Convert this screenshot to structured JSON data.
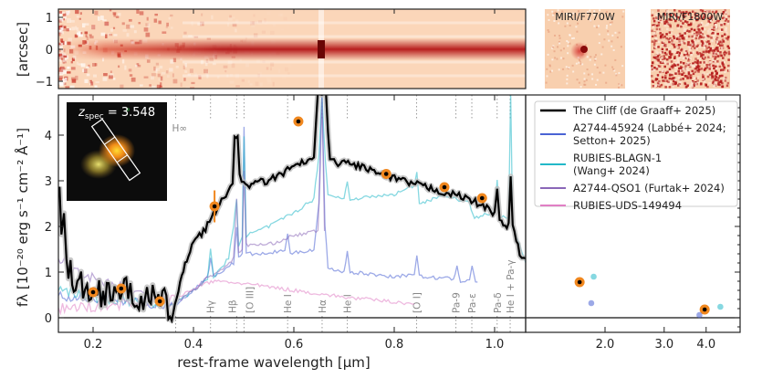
{
  "chart_data": {
    "type": "line",
    "colors": {
      "cliff": "#000000",
      "cliff_error": "#bbbbbb",
      "a2744_45924": "#4a63d4",
      "rubies_blagn1": "#22b8c8",
      "a2744_qso1": "#8a67b8",
      "rubies_uds": "#e07fc4",
      "photometry": "#f0871e"
    },
    "spectrum_panel": {
      "ylabel_parts": [
        "[arcsec]"
      ],
      "yticks": [
        "1",
        "0",
        "−1"
      ],
      "y_values": [
        1,
        0,
        -1
      ],
      "colormap": "reds"
    },
    "cutouts": [
      {
        "label": "MIRI/F770W"
      },
      {
        "label": "MIRI/F1800W"
      }
    ],
    "inset": {
      "label_z": "z",
      "label_sub": "spec",
      "label_value": " = 3.548"
    },
    "main_panel": {
      "xlabel": "rest-frame wavelength [μm]",
      "ylabel": "fλ [10⁻²⁰ erg s⁻¹ cm⁻² Å⁻¹]",
      "xlim": [
        0.131,
        1.062
      ],
      "ylim": [
        -0.32,
        4.83
      ],
      "xscale": "linear",
      "xticks": [
        0.2,
        0.4,
        0.6,
        0.8,
        1.0
      ],
      "xtick_labels": [
        "0.2",
        "0.4",
        "0.6",
        "0.8",
        "1.0"
      ],
      "yticks": [
        0,
        1,
        2,
        3,
        4
      ],
      "ytick_labels": [
        "0",
        "1",
        "2",
        "3",
        "4"
      ]
    },
    "right_panel": {
      "xlim": [
        1.16,
        5.05
      ],
      "xscale": "log",
      "xticks": [
        2.0,
        3.0,
        4.0
      ],
      "xtick_labels": [
        "2.0",
        "3.0",
        "4.0"
      ]
    },
    "legend": {
      "placement": "upper-right",
      "entries": [
        {
          "key": "cliff",
          "label": [
            "The Cliff (de Graaff+ 2025)"
          ]
        },
        {
          "key": "a2744_45924",
          "label": [
            "A2744-45924 (Labbé+ 2024;",
            " Setton+ 2025)"
          ]
        },
        {
          "key": "rubies_blagn1",
          "label": [
            "RUBIES-BLAGN-1",
            " (Wang+ 2024)"
          ]
        },
        {
          "key": "a2744_qso1",
          "label": [
            "A2744-QSO1 (Furtak+ 2024)"
          ]
        },
        {
          "key": "rubies_uds",
          "label": [
            "RUBIES-UDS-149494"
          ]
        }
      ]
    },
    "emission_lines": [
      {
        "label": "H∞",
        "wavelength": 0.3646,
        "pos": "top"
      },
      {
        "label": "Hγ",
        "wavelength": 0.434
      },
      {
        "label": "Hβ",
        "wavelength": 0.4861
      },
      {
        "label": "[O III]",
        "wavelength": 0.5007
      },
      {
        "label": "He I",
        "wavelength": 0.5876
      },
      {
        "label": "Hα",
        "wavelength": 0.6563
      },
      {
        "label": "He I",
        "wavelength": 0.7065
      },
      {
        "label": "[O I]",
        "wavelength": 0.8446
      },
      {
        "label": "Pa-9",
        "wavelength": 0.9229
      },
      {
        "label": "Pa-ε",
        "wavelength": 0.9546
      },
      {
        "label": "Pa-δ",
        "wavelength": 1.005
      },
      {
        "label": "He I + Pa-γ",
        "wavelength": 1.031
      }
    ],
    "series": [
      {
        "key": "a2744_45924",
        "name": "A2744-45924",
        "points": [
          [
            0.131,
            0.45
          ],
          [
            0.2,
            0.45
          ],
          [
            0.3,
            0.35
          ],
          [
            0.36,
            0.25
          ],
          [
            0.4,
            0.6
          ],
          [
            0.428,
            0.9
          ],
          [
            0.434,
            1.3
          ],
          [
            0.44,
            0.9
          ],
          [
            0.48,
            1.2
          ],
          [
            0.486,
            2.0
          ],
          [
            0.49,
            1.3
          ],
          [
            0.497,
            1.4
          ],
          [
            0.5007,
            4.2
          ],
          [
            0.505,
            1.4
          ],
          [
            0.55,
            1.4
          ],
          [
            0.582,
            1.5
          ],
          [
            0.5876,
            1.8
          ],
          [
            0.593,
            1.4
          ],
          [
            0.64,
            1.5
          ],
          [
            0.65,
            2.5
          ],
          [
            0.656,
            4.9
          ],
          [
            0.662,
            2.0
          ],
          [
            0.668,
            1.1
          ],
          [
            0.7,
            1.0
          ],
          [
            0.7065,
            1.45
          ],
          [
            0.712,
            1.0
          ],
          [
            0.8,
            0.9
          ],
          [
            0.84,
            0.95
          ],
          [
            0.845,
            1.4
          ],
          [
            0.85,
            0.9
          ],
          [
            0.918,
            0.85
          ],
          [
            0.925,
            1.1
          ],
          [
            0.932,
            0.8
          ],
          [
            0.95,
            0.85
          ],
          [
            0.955,
            1.15
          ],
          [
            0.962,
            0.8
          ],
          [
            0.966,
            0.78
          ]
        ]
      },
      {
        "key": "rubies_blagn1",
        "name": "RUBIES-BLAGN-1",
        "points": [
          [
            0.131,
            0.6
          ],
          [
            0.2,
            0.45
          ],
          [
            0.3,
            0.35
          ],
          [
            0.36,
            0.3
          ],
          [
            0.4,
            0.6
          ],
          [
            0.428,
            0.85
          ],
          [
            0.434,
            1.5
          ],
          [
            0.44,
            0.9
          ],
          [
            0.47,
            1.3
          ],
          [
            0.48,
            2.0
          ],
          [
            0.486,
            2.6
          ],
          [
            0.49,
            1.6
          ],
          [
            0.497,
            1.8
          ],
          [
            0.5007,
            4.0
          ],
          [
            0.505,
            1.8
          ],
          [
            0.55,
            2.0
          ],
          [
            0.6,
            2.3
          ],
          [
            0.64,
            2.6
          ],
          [
            0.65,
            3.6
          ],
          [
            0.656,
            4.9
          ],
          [
            0.663,
            3.4
          ],
          [
            0.668,
            2.7
          ],
          [
            0.7,
            2.6
          ],
          [
            0.7065,
            3.0
          ],
          [
            0.712,
            2.6
          ],
          [
            0.8,
            2.7
          ],
          [
            0.84,
            2.9
          ],
          [
            0.845,
            3.2
          ],
          [
            0.85,
            2.5
          ],
          [
            0.9,
            2.7
          ],
          [
            0.95,
            2.5
          ],
          [
            0.96,
            2.2
          ],
          [
            1.0,
            2.3
          ],
          [
            1.005,
            3.0
          ],
          [
            1.01,
            2.2
          ],
          [
            1.028,
            2.2
          ],
          [
            1.032,
            4.9
          ],
          [
            1.036,
            2.0
          ],
          [
            1.062,
            1.2
          ]
        ]
      },
      {
        "key": "a2744_qso1",
        "name": "A2744-QSO1",
        "points": [
          [
            0.131,
            1.3
          ],
          [
            0.17,
            1.0
          ],
          [
            0.25,
            0.7
          ],
          [
            0.3,
            0.5
          ],
          [
            0.36,
            0.3
          ],
          [
            0.4,
            0.6
          ],
          [
            0.43,
            0.9
          ],
          [
            0.45,
            1.0
          ],
          [
            0.48,
            1.3
          ],
          [
            0.486,
            2.6
          ],
          [
            0.49,
            1.4
          ],
          [
            0.497,
            1.5
          ],
          [
            0.5007,
            3.2
          ],
          [
            0.505,
            1.6
          ],
          [
            0.55,
            1.6
          ],
          [
            0.6,
            1.8
          ],
          [
            0.648,
            1.9
          ],
          [
            0.652,
            3.0
          ],
          [
            0.656,
            4.9
          ],
          [
            0.661,
            1.9
          ]
        ]
      },
      {
        "key": "rubies_uds",
        "name": "RUBIES-UDS-149494",
        "points": [
          [
            0.131,
            0.2
          ],
          [
            0.2,
            0.25
          ],
          [
            0.3,
            0.35
          ],
          [
            0.38,
            0.5
          ],
          [
            0.42,
            0.75
          ],
          [
            0.45,
            0.8
          ],
          [
            0.5,
            0.75
          ],
          [
            0.6,
            0.6
          ],
          [
            0.7,
            0.45
          ],
          [
            0.8,
            0.35
          ],
          [
            0.84,
            0.3
          ]
        ]
      },
      {
        "key": "cliff",
        "name": "The Cliff",
        "points": [
          [
            0.133,
            3.1
          ],
          [
            0.137,
            1.6
          ],
          [
            0.142,
            2.3
          ],
          [
            0.147,
            1.0
          ],
          [
            0.155,
            1.2
          ],
          [
            0.165,
            0.6
          ],
          [
            0.18,
            0.7
          ],
          [
            0.2,
            0.5
          ],
          [
            0.22,
            0.6
          ],
          [
            0.25,
            0.65
          ],
          [
            0.27,
            0.5
          ],
          [
            0.3,
            0.45
          ],
          [
            0.33,
            0.35
          ],
          [
            0.35,
            0.25
          ],
          [
            0.36,
            0.12
          ],
          [
            0.37,
            0.6
          ],
          [
            0.38,
            1.0
          ],
          [
            0.39,
            1.4
          ],
          [
            0.4,
            1.7
          ],
          [
            0.42,
            1.9
          ],
          [
            0.44,
            2.25
          ],
          [
            0.46,
            2.6
          ],
          [
            0.478,
            3.0
          ],
          [
            0.482,
            3.95
          ],
          [
            0.488,
            3.9
          ],
          [
            0.492,
            3.1
          ],
          [
            0.5,
            2.9
          ],
          [
            0.55,
            3.0
          ],
          [
            0.6,
            3.3
          ],
          [
            0.64,
            3.5
          ],
          [
            0.648,
            4.9
          ],
          [
            0.664,
            4.9
          ],
          [
            0.672,
            3.4
          ],
          [
            0.7,
            3.4
          ],
          [
            0.74,
            3.3
          ],
          [
            0.78,
            3.1
          ],
          [
            0.85,
            2.9
          ],
          [
            0.9,
            2.75
          ],
          [
            0.95,
            2.6
          ],
          [
            1.0,
            2.3
          ],
          [
            1.005,
            2.9
          ],
          [
            1.01,
            2.1
          ],
          [
            1.028,
            2.0
          ],
          [
            1.032,
            3.1
          ],
          [
            1.036,
            2.0
          ],
          [
            1.05,
            1.4
          ],
          [
            1.062,
            1.3
          ]
        ]
      }
    ],
    "photometry": [
      {
        "key": "cliff",
        "points": [
          [
            0.2,
            0.56
          ],
          [
            0.256,
            0.64
          ],
          [
            0.333,
            0.36
          ],
          [
            0.442,
            2.44
          ],
          [
            0.609,
            4.3
          ],
          [
            0.784,
            3.15
          ],
          [
            0.9,
            2.86
          ],
          [
            0.975,
            2.62
          ],
          [
            1.68,
            0.78
          ],
          [
            3.96,
            0.18
          ]
        ],
        "error_on": [
          0.442,
          0.35
        ]
      },
      {
        "key": "rubies_blagn1",
        "points": [
          [
            1.85,
            0.9
          ],
          [
            4.41,
            0.24
          ]
        ]
      },
      {
        "key": "a2744_45924",
        "points": [
          [
            1.82,
            0.32
          ],
          [
            3.82,
            0.06
          ]
        ]
      }
    ]
  }
}
